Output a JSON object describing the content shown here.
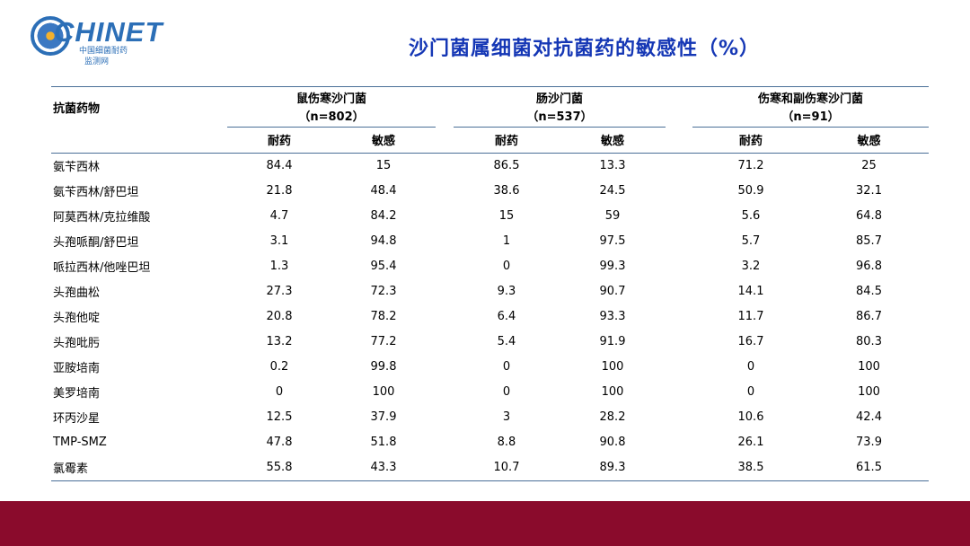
{
  "logo": {
    "brand": "CHINET",
    "subtitle_line1": "中国细菌耐药",
    "subtitle_line2": "监测网"
  },
  "title": "沙门菌属细菌对抗菌药的敏感性（%）",
  "table": {
    "drug_header": "抗菌药物",
    "groups": [
      {
        "name": "鼠伤寒沙门菌",
        "n": "（n=802）"
      },
      {
        "name": "肠沙门菌",
        "n": "（n=537）"
      },
      {
        "name": "伤寒和副伤寒沙门菌",
        "n": "（n=91）"
      }
    ],
    "resistant_label": "耐药",
    "sensitive_label": "敏感",
    "rows": [
      {
        "drug": "氨苄西林",
        "v": [
          "84.4",
          "15",
          "86.5",
          "13.3",
          "71.2",
          "25"
        ]
      },
      {
        "drug": "氨苄西林/舒巴坦",
        "v": [
          "21.8",
          "48.4",
          "38.6",
          "24.5",
          "50.9",
          "32.1"
        ]
      },
      {
        "drug": "阿莫西林/克拉维酸",
        "v": [
          "4.7",
          "84.2",
          "15",
          "59",
          "5.6",
          "64.8"
        ]
      },
      {
        "drug": "头孢哌酮/舒巴坦",
        "v": [
          "3.1",
          "94.8",
          "1",
          "97.5",
          "5.7",
          "85.7"
        ]
      },
      {
        "drug": "哌拉西林/他唑巴坦",
        "v": [
          "1.3",
          "95.4",
          "0",
          "99.3",
          "3.2",
          "96.8"
        ]
      },
      {
        "drug": "头孢曲松",
        "v": [
          "27.3",
          "72.3",
          "9.3",
          "90.7",
          "14.1",
          "84.5"
        ]
      },
      {
        "drug": "头孢他啶",
        "v": [
          "20.8",
          "78.2",
          "6.4",
          "93.3",
          "11.7",
          "86.7"
        ]
      },
      {
        "drug": "头孢吡肟",
        "v": [
          "13.2",
          "77.2",
          "5.4",
          "91.9",
          "16.7",
          "80.3"
        ]
      },
      {
        "drug": "亚胺培南",
        "v": [
          "0.2",
          "99.8",
          "0",
          "100",
          "0",
          "100"
        ]
      },
      {
        "drug": "美罗培南",
        "v": [
          "0",
          "100",
          "0",
          "100",
          "0",
          "100"
        ]
      },
      {
        "drug": "环丙沙星",
        "v": [
          "12.5",
          "37.9",
          "3",
          "28.2",
          "10.6",
          "42.4"
        ]
      },
      {
        "drug": "TMP-SMZ",
        "v": [
          "47.8",
          "51.8",
          "8.8",
          "90.8",
          "26.1",
          "73.9"
        ]
      },
      {
        "drug": "氯霉素",
        "v": [
          "55.8",
          "43.3",
          "10.7",
          "89.3",
          "38.5",
          "61.5"
        ]
      }
    ]
  }
}
